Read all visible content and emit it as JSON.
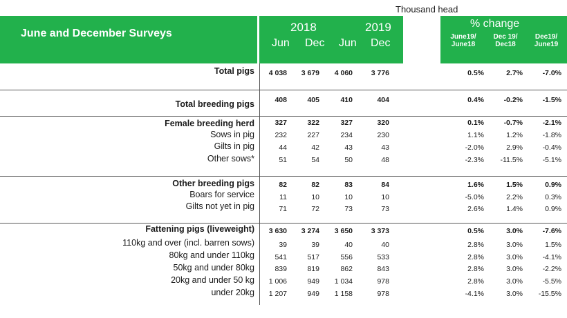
{
  "units": "Thousand head",
  "header": {
    "title": "June and December Surveys",
    "years": [
      "2018",
      "2019"
    ],
    "months": [
      "Jun",
      "Dec",
      "Jun",
      "Dec"
    ],
    "pct_title": "% change",
    "pct_cols": [
      [
        "June19/",
        "June18"
      ],
      [
        "Dec 19/",
        "Dec18"
      ],
      [
        "Dec19/",
        "June19"
      ]
    ]
  },
  "rows": [
    {
      "label": "Total pigs",
      "bold": true,
      "values": [
        "4 038",
        "3 679",
        "4 060",
        "3 776"
      ],
      "pct": [
        "0.5%",
        "2.7%",
        "-7.0%"
      ]
    },
    {
      "label": "Total breeding pigs",
      "bold": true,
      "values": [
        "408",
        "405",
        "410",
        "404"
      ],
      "pct": [
        "0.4%",
        "-0.2%",
        "-1.5%"
      ]
    },
    {
      "label": "Female breeding herd",
      "bold": true,
      "values": [
        "327",
        "322",
        "327",
        "320"
      ],
      "pct": [
        "0.1%",
        "-0.7%",
        "-2.1%"
      ]
    },
    {
      "label": "Sows in pig",
      "bold": false,
      "values": [
        "232",
        "227",
        "234",
        "230"
      ],
      "pct": [
        "1.1%",
        "1.2%",
        "-1.8%"
      ]
    },
    {
      "label": "Gilts in pig",
      "bold": false,
      "values": [
        "44",
        "42",
        "43",
        "43"
      ],
      "pct": [
        "-2.0%",
        "2.9%",
        "-0.4%"
      ]
    },
    {
      "label": "Other sows*",
      "bold": false,
      "values": [
        "51",
        "54",
        "50",
        "48"
      ],
      "pct": [
        "-2.3%",
        "-11.5%",
        "-5.1%"
      ]
    },
    {
      "label": "Other breeding pigs",
      "bold": true,
      "values": [
        "82",
        "82",
        "83",
        "84"
      ],
      "pct": [
        "1.6%",
        "1.5%",
        "0.9%"
      ]
    },
    {
      "label": "Boars for service",
      "bold": false,
      "values": [
        "11",
        "10",
        "10",
        "10"
      ],
      "pct": [
        "-5.0%",
        "2.2%",
        "0.3%"
      ]
    },
    {
      "label": "Gilts not yet in pig",
      "bold": false,
      "values": [
        "71",
        "72",
        "73",
        "73"
      ],
      "pct": [
        "2.6%",
        "1.4%",
        "0.9%"
      ]
    },
    {
      "label": "Fattening pigs (liveweight)",
      "bold": true,
      "values": [
        "3 630",
        "3 274",
        "3 650",
        "3 373"
      ],
      "pct": [
        "0.5%",
        "3.0%",
        "-7.6%"
      ]
    },
    {
      "label": "110kg and over (incl. barren sows)",
      "bold": false,
      "values": [
        "39",
        "39",
        "40",
        "40"
      ],
      "pct": [
        "2.8%",
        "3.0%",
        "1.5%"
      ]
    },
    {
      "label": "80kg and under 110kg",
      "bold": false,
      "values": [
        "541",
        "517",
        "556",
        "533"
      ],
      "pct": [
        "2.8%",
        "3.0%",
        "-4.1%"
      ]
    },
    {
      "label": "50kg and under 80kg",
      "bold": false,
      "values": [
        "839",
        "819",
        "862",
        "843"
      ],
      "pct": [
        "2.8%",
        "3.0%",
        "-2.2%"
      ]
    },
    {
      "label": "20kg and under 50 kg",
      "bold": false,
      "values": [
        "1 006",
        "949",
        "1 034",
        "978"
      ],
      "pct": [
        "2.8%",
        "3.0%",
        "-5.5%"
      ]
    },
    {
      "label": "under 20kg",
      "bold": false,
      "values": [
        "1 207",
        "949",
        "1 158",
        "978"
      ],
      "pct": [
        "-4.1%",
        "3.0%",
        "-15.5%"
      ]
    }
  ]
}
